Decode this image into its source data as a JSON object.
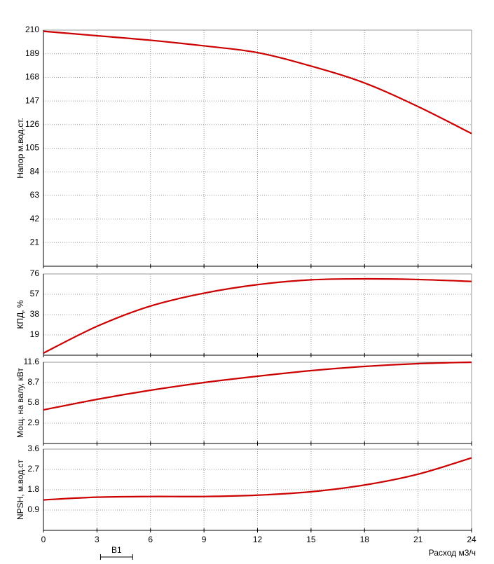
{
  "chart_data": [
    {
      "type": "line",
      "ylabel": "Напор м.вод.ст.",
      "xlim": [
        0,
        24
      ],
      "xticks": [
        0,
        3,
        6,
        9,
        12,
        15,
        18,
        21,
        24
      ],
      "ylim": [
        0,
        210
      ],
      "yticks": [
        21,
        42,
        63,
        84,
        105,
        126,
        147,
        168,
        189,
        210
      ],
      "grid": true,
      "x": [
        0,
        3,
        6,
        9,
        12,
        15,
        18,
        21,
        24
      ],
      "series": [
        {
          "color": "#cc0000",
          "values": [
            209,
            205,
            201,
            196,
            190,
            178,
            163,
            142,
            118
          ]
        }
      ]
    },
    {
      "type": "line",
      "ylabel": "КПД, %",
      "xlim": [
        0,
        24
      ],
      "xticks": [
        0,
        3,
        6,
        9,
        12,
        15,
        18,
        21,
        24
      ],
      "ylim": [
        0,
        76
      ],
      "yticks": [
        19,
        38,
        57,
        76
      ],
      "grid": true,
      "x": [
        0,
        3,
        6,
        9,
        12,
        15,
        18,
        21,
        24
      ],
      "series": [
        {
          "color": "#cc0000",
          "values": [
            2,
            27,
            46,
            58,
            66,
            70.5,
            71.4,
            70.8,
            69
          ]
        }
      ]
    },
    {
      "type": "line",
      "ylabel": "Мощ. на валу, кВт",
      "xlim": [
        0,
        24
      ],
      "xticks": [
        0,
        3,
        6,
        9,
        12,
        15,
        18,
        21,
        24
      ],
      "ylim": [
        0,
        11.6
      ],
      "yticks": [
        2.9,
        5.8,
        8.7,
        11.6
      ],
      "grid": true,
      "x": [
        0,
        3,
        6,
        9,
        12,
        15,
        18,
        21,
        24
      ],
      "series": [
        {
          "color": "#cc0000",
          "values": [
            4.8,
            6.3,
            7.6,
            8.7,
            9.6,
            10.4,
            11.0,
            11.4,
            11.6
          ]
        }
      ]
    },
    {
      "type": "line",
      "ylabel": "NPSH, м.вод.ст",
      "xlabel": "Расход м3/ч",
      "xlim": [
        0,
        24
      ],
      "xticks": [
        0,
        3,
        6,
        9,
        12,
        15,
        18,
        21,
        24
      ],
      "ylim": [
        0,
        3.6
      ],
      "yticks": [
        0.9,
        1.8,
        2.7,
        3.6
      ],
      "grid": true,
      "x": [
        0,
        3,
        6,
        9,
        12,
        15,
        18,
        21,
        24
      ],
      "series": [
        {
          "color": "#cc0000",
          "values": [
            1.35,
            1.47,
            1.5,
            1.5,
            1.56,
            1.71,
            2.01,
            2.49,
            3.21
          ]
        }
      ],
      "annotation": {
        "label": "B1",
        "x": [
          3.2,
          5
        ]
      }
    }
  ]
}
